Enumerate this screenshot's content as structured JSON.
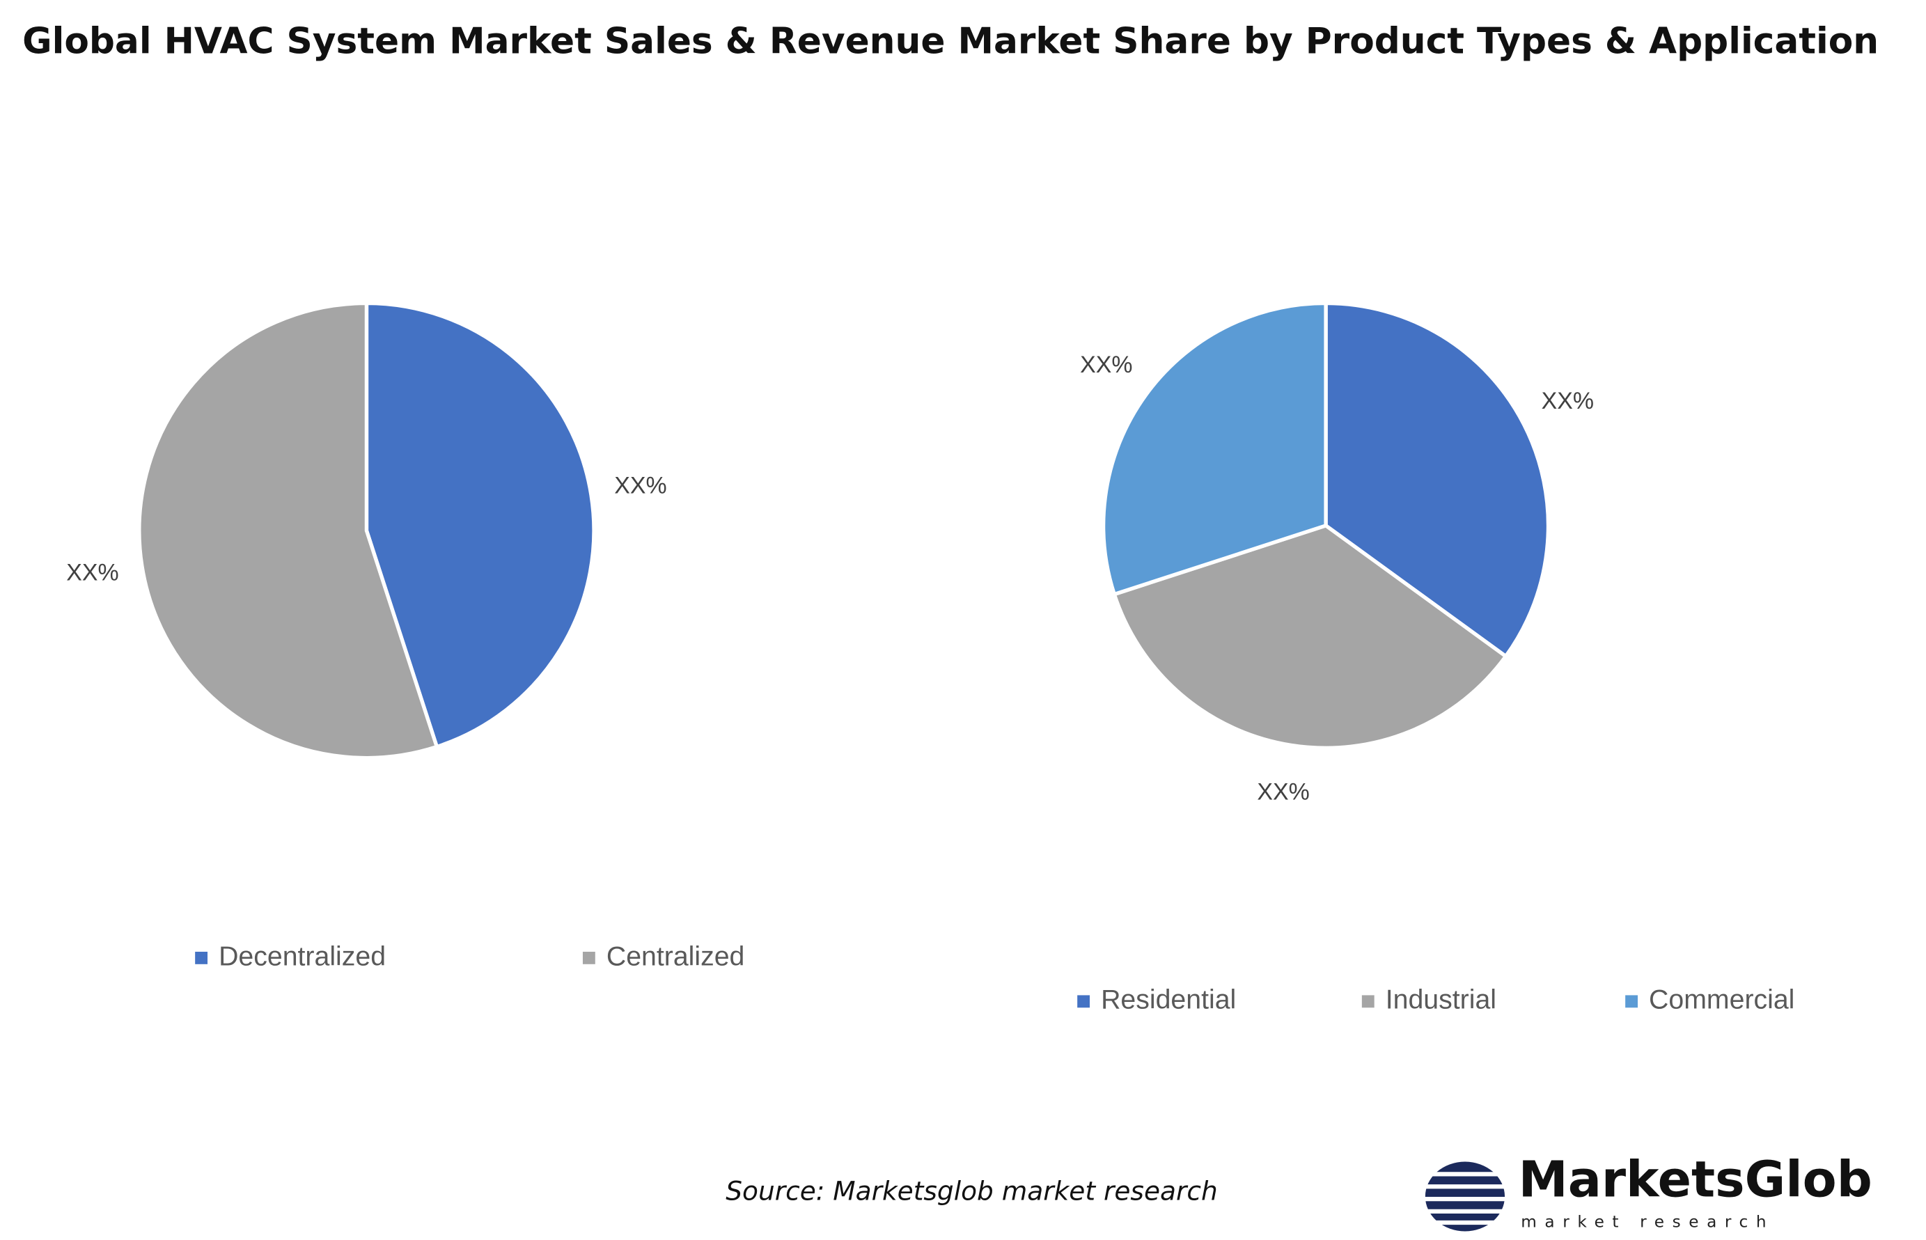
{
  "title": "Global HVAC System Market Sales & Revenue Market Share by Product Types & Application",
  "chart_data": [
    {
      "type": "pie",
      "categories": [
        "Decentralized",
        "Centralized"
      ],
      "values": [
        45,
        55
      ],
      "value_labels": [
        "XX%",
        "XX%"
      ],
      "colors": [
        "#4472c4",
        "#a5a5a5"
      ],
      "legend": "bottom"
    },
    {
      "type": "pie",
      "categories": [
        "Residential",
        "Industrial",
        "Commercial"
      ],
      "values": [
        35,
        35,
        30
      ],
      "value_labels": [
        "XX%",
        "XX%",
        "XX%"
      ],
      "colors": [
        "#4472c4",
        "#a5a5a5",
        "#5b9bd5"
      ],
      "legend": "bottom"
    }
  ],
  "source": "Source: Marketsglob market research",
  "logo": {
    "name": "MarketsGlob",
    "tagline": "market research"
  }
}
